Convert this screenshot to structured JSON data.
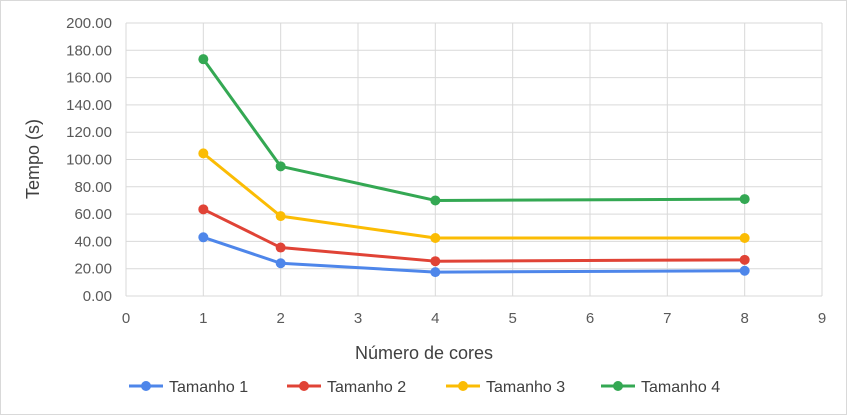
{
  "chart_data": {
    "type": "line",
    "title": "",
    "xlabel": "Número de cores",
    "ylabel": "Tempo (s)",
    "xlim": [
      0,
      9
    ],
    "ylim": [
      0,
      200
    ],
    "x_ticks": [
      "0",
      "1",
      "2",
      "3",
      "4",
      "5",
      "6",
      "7",
      "8",
      "9"
    ],
    "y_ticks": [
      "0.00",
      "20.00",
      "40.00",
      "60.00",
      "80.00",
      "100.00",
      "120.00",
      "140.00",
      "160.00",
      "180.00",
      "200.00"
    ],
    "x": [
      1,
      2,
      4,
      8
    ],
    "grid": true,
    "legend_position": "bottom",
    "series": [
      {
        "name": "Tamanho 1",
        "color": "#4e86ea",
        "values": [
          43,
          24,
          17.5,
          18.5
        ]
      },
      {
        "name": "Tamanho 2",
        "color": "#e04336",
        "values": [
          63.5,
          35.5,
          25.5,
          26.5
        ]
      },
      {
        "name": "Tamanho 3",
        "color": "#fbbc04",
        "values": [
          104.5,
          58.5,
          42.5,
          42.5
        ]
      },
      {
        "name": "Tamanho 4",
        "color": "#34a853",
        "values": [
          173.5,
          95,
          70,
          71
        ]
      }
    ]
  }
}
